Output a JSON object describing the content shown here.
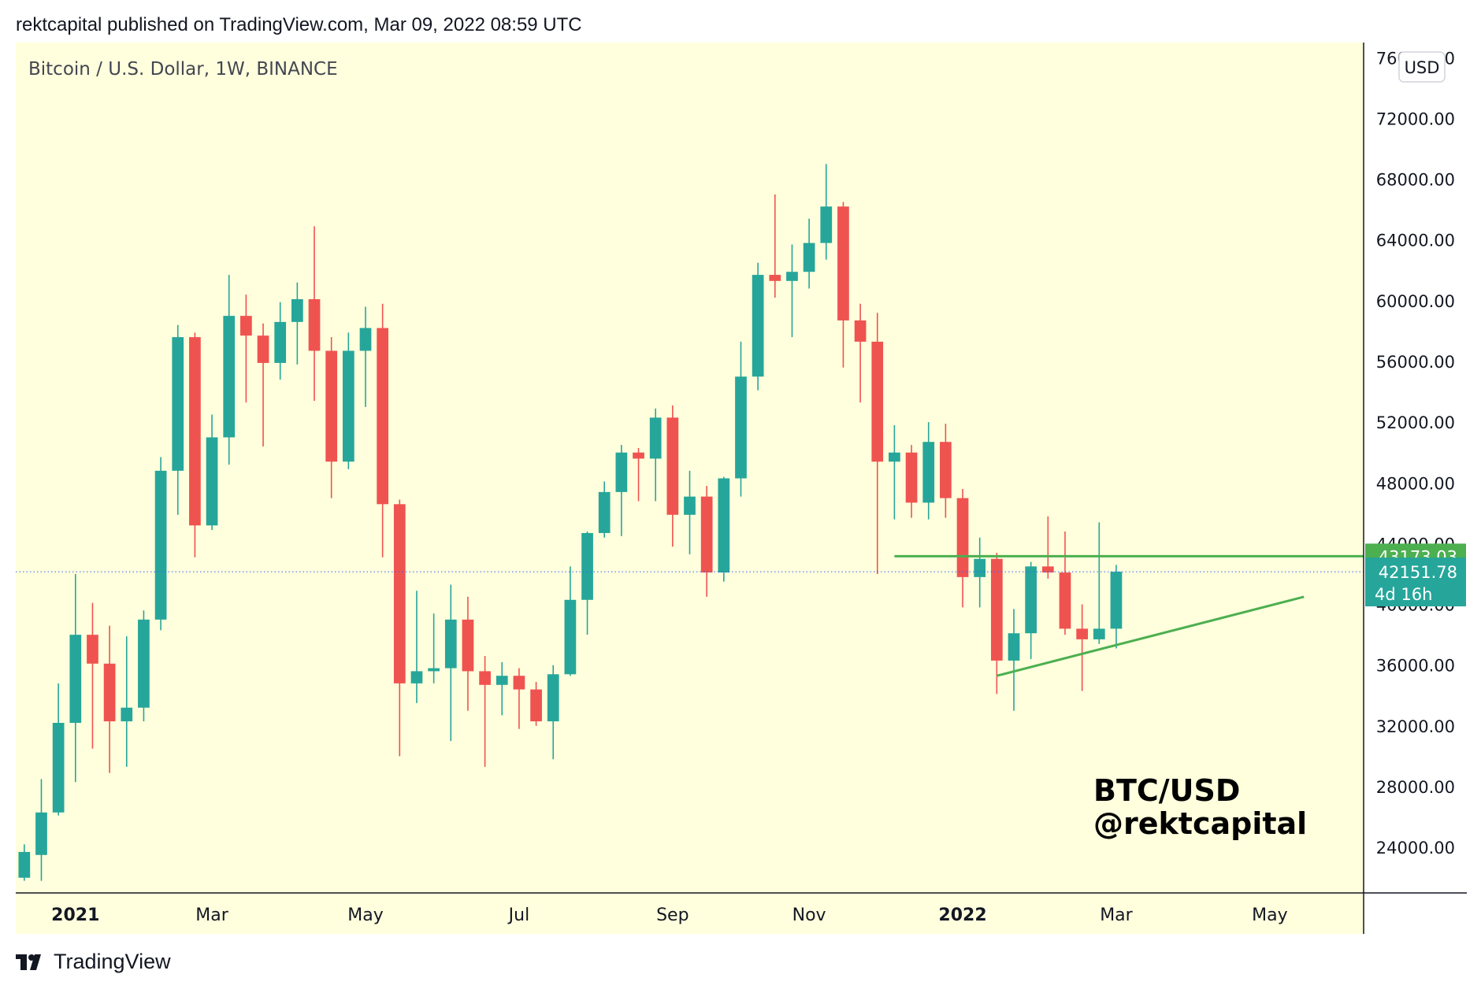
{
  "header": {
    "text": "rektcapital published on TradingView.com, Mar 09, 2022 08:59 UTC"
  },
  "footer": {
    "brand": "TradingView",
    "logo_icon": "tradingview-logo-icon"
  },
  "chart_data": {
    "type": "candlestick",
    "title": "Bitcoin / U.S. Dollar, 1W, BINANCE",
    "currency": "USD",
    "watermark": [
      "BTC/USD",
      "@rektcapital"
    ],
    "ylim": [
      21000,
      77000
    ],
    "y_ticks": [
      "76000.00",
      "72000.00",
      "68000.00",
      "64000.00",
      "60000.00",
      "56000.00",
      "52000.00",
      "48000.00",
      "44000.00",
      "40000.00",
      "36000.00",
      "32000.00",
      "28000.00",
      "24000.00"
    ],
    "x_labels": [
      {
        "label": "2021",
        "index": 3,
        "bold": true
      },
      {
        "label": "Mar",
        "index": 11,
        "bold": false
      },
      {
        "label": "May",
        "index": 20,
        "bold": false
      },
      {
        "label": "Jul",
        "index": 29,
        "bold": false
      },
      {
        "label": "Sep",
        "index": 38,
        "bold": false
      },
      {
        "label": "Nov",
        "index": 46,
        "bold": false
      },
      {
        "label": "2022",
        "index": 55,
        "bold": true
      },
      {
        "label": "Mar",
        "index": 64,
        "bold": false
      },
      {
        "label": "May",
        "index": 73,
        "bold": false
      }
    ],
    "total_slots": 79,
    "colors": {
      "up": "#26a69a",
      "down": "#ef5350",
      "background": "#ffffdd",
      "line": "#4caf50",
      "dotted": "#2962ff"
    },
    "candles": [
      {
        "o": 22000,
        "h": 24200,
        "l": 21800,
        "c": 23700
      },
      {
        "o": 23500,
        "h": 28500,
        "l": 21800,
        "c": 26300
      },
      {
        "o": 26300,
        "h": 34800,
        "l": 26100,
        "c": 32200
      },
      {
        "o": 32200,
        "h": 42000,
        "l": 28300,
        "c": 38000
      },
      {
        "o": 38000,
        "h": 40100,
        "l": 30500,
        "c": 36100
      },
      {
        "o": 36100,
        "h": 38600,
        "l": 28900,
        "c": 32300
      },
      {
        "o": 32300,
        "h": 37900,
        "l": 29300,
        "c": 33200
      },
      {
        "o": 33200,
        "h": 39600,
        "l": 32300,
        "c": 39000
      },
      {
        "o": 39000,
        "h": 49700,
        "l": 38300,
        "c": 48800
      },
      {
        "o": 48800,
        "h": 58400,
        "l": 45900,
        "c": 57600
      },
      {
        "o": 57600,
        "h": 57900,
        "l": 43100,
        "c": 45200
      },
      {
        "o": 45200,
        "h": 52500,
        "l": 44900,
        "c": 51000
      },
      {
        "o": 51000,
        "h": 61700,
        "l": 49200,
        "c": 59000
      },
      {
        "o": 59000,
        "h": 60400,
        "l": 53300,
        "c": 57700
      },
      {
        "o": 57700,
        "h": 58500,
        "l": 50400,
        "c": 55900
      },
      {
        "o": 55900,
        "h": 59900,
        "l": 54800,
        "c": 58600
      },
      {
        "o": 58600,
        "h": 61200,
        "l": 55800,
        "c": 60100
      },
      {
        "o": 60100,
        "h": 64900,
        "l": 53400,
        "c": 56700
      },
      {
        "o": 56700,
        "h": 57600,
        "l": 47000,
        "c": 49400
      },
      {
        "o": 49400,
        "h": 57900,
        "l": 48900,
        "c": 56700
      },
      {
        "o": 56700,
        "h": 59600,
        "l": 53000,
        "c": 58200
      },
      {
        "o": 58200,
        "h": 59800,
        "l": 43100,
        "c": 46600
      },
      {
        "o": 46600,
        "h": 46900,
        "l": 30000,
        "c": 34800
      },
      {
        "o": 34800,
        "h": 40900,
        "l": 33500,
        "c": 35600
      },
      {
        "o": 35600,
        "h": 39400,
        "l": 34800,
        "c": 35800
      },
      {
        "o": 35800,
        "h": 41300,
        "l": 31000,
        "c": 39000
      },
      {
        "o": 39000,
        "h": 40500,
        "l": 33000,
        "c": 35600
      },
      {
        "o": 35600,
        "h": 36600,
        "l": 29300,
        "c": 34700
      },
      {
        "o": 34700,
        "h": 36200,
        "l": 32700,
        "c": 35300
      },
      {
        "o": 35300,
        "h": 35800,
        "l": 31800,
        "c": 34400
      },
      {
        "o": 34400,
        "h": 34900,
        "l": 32000,
        "c": 32300
      },
      {
        "o": 32300,
        "h": 36000,
        "l": 29800,
        "c": 35400
      },
      {
        "o": 35400,
        "h": 42500,
        "l": 35300,
        "c": 40300
      },
      {
        "o": 40300,
        "h": 44800,
        "l": 38000,
        "c": 44700
      },
      {
        "o": 44700,
        "h": 48100,
        "l": 44400,
        "c": 47400
      },
      {
        "o": 47400,
        "h": 50500,
        "l": 44500,
        "c": 50000
      },
      {
        "o": 50000,
        "h": 50300,
        "l": 46800,
        "c": 49600
      },
      {
        "o": 49600,
        "h": 52900,
        "l": 46800,
        "c": 52300
      },
      {
        "o": 52300,
        "h": 53100,
        "l": 43800,
        "c": 45900
      },
      {
        "o": 45900,
        "h": 48800,
        "l": 43300,
        "c": 47100
      },
      {
        "o": 47100,
        "h": 47800,
        "l": 40500,
        "c": 42100
      },
      {
        "o": 42100,
        "h": 48400,
        "l": 41500,
        "c": 48300
      },
      {
        "o": 48300,
        "h": 57300,
        "l": 47100,
        "c": 55000
      },
      {
        "o": 55000,
        "h": 62500,
        "l": 54100,
        "c": 61700
      },
      {
        "o": 61700,
        "h": 67000,
        "l": 60200,
        "c": 61300
      },
      {
        "o": 61300,
        "h": 63700,
        "l": 57600,
        "c": 61900
      },
      {
        "o": 61900,
        "h": 65400,
        "l": 60800,
        "c": 63800
      },
      {
        "o": 63800,
        "h": 69000,
        "l": 62700,
        "c": 66200
      },
      {
        "o": 66200,
        "h": 66500,
        "l": 55600,
        "c": 58700
      },
      {
        "o": 58700,
        "h": 59800,
        "l": 53300,
        "c": 57300
      },
      {
        "o": 57300,
        "h": 59200,
        "l": 42000,
        "c": 49400
      },
      {
        "o": 49400,
        "h": 51800,
        "l": 45600,
        "c": 50000
      },
      {
        "o": 50000,
        "h": 50500,
        "l": 45700,
        "c": 46700
      },
      {
        "o": 46700,
        "h": 52000,
        "l": 45600,
        "c": 50700
      },
      {
        "o": 50700,
        "h": 51900,
        "l": 45700,
        "c": 47000
      },
      {
        "o": 47000,
        "h": 47600,
        "l": 39800,
        "c": 41800
      },
      {
        "o": 41800,
        "h": 44400,
        "l": 39800,
        "c": 43000
      },
      {
        "o": 43000,
        "h": 43400,
        "l": 34100,
        "c": 36300
      },
      {
        "o": 36300,
        "h": 39700,
        "l": 33000,
        "c": 38100
      },
      {
        "o": 38100,
        "h": 42800,
        "l": 36400,
        "c": 42500
      },
      {
        "o": 42500,
        "h": 45800,
        "l": 41700,
        "c": 42100
      },
      {
        "o": 42100,
        "h": 44800,
        "l": 38000,
        "c": 38400
      },
      {
        "o": 38400,
        "h": 40000,
        "l": 34300,
        "c": 37700
      },
      {
        "o": 37700,
        "h": 45400,
        "l": 37400,
        "c": 38400
      },
      {
        "o": 38400,
        "h": 42600,
        "l": 37100,
        "c": 42150
      }
    ],
    "horizontal_line": {
      "value": 43173.03,
      "from_index": 51.5,
      "to_index": 79
    },
    "trendline": {
      "start": {
        "index": 57,
        "value": 35300
      },
      "end": {
        "index": 75,
        "value": 40500
      }
    },
    "current_price": {
      "value": 42151.78,
      "label": "42151.78",
      "countdown": "4d 16h"
    },
    "level_label": {
      "value": 43173.03,
      "label": "43173.03"
    }
  }
}
